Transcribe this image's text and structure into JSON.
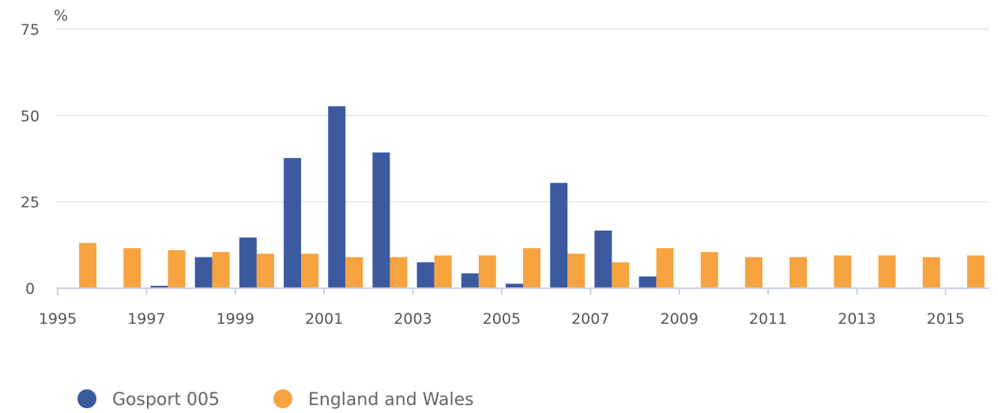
{
  "chart_data": {
    "type": "bar",
    "title": "",
    "xlabel": "",
    "ylabel": "%",
    "ylim": [
      0,
      75
    ],
    "yticks": [
      0,
      25,
      50,
      75
    ],
    "grid": true,
    "legend_placement": "bottom-left",
    "categories": [
      "1995",
      "1996",
      "1997",
      "1998",
      "1999",
      "2000",
      "2001",
      "2002",
      "2003",
      "2004",
      "2005",
      "2006",
      "2007",
      "2008",
      "2009",
      "2010",
      "2011",
      "2012",
      "2013",
      "2014",
      "2015"
    ],
    "xtick_labels": [
      "1995",
      "1997",
      "1999",
      "2001",
      "2003",
      "2005",
      "2007",
      "2009",
      "2011",
      "2013",
      "2015"
    ],
    "series": [
      {
        "name": "Gosport 005",
        "color": "#3c5aa0",
        "values": [
          0,
          0,
          0.7,
          9,
          14.7,
          37.7,
          52.7,
          39.3,
          7.5,
          4.3,
          1.3,
          30.5,
          16.7,
          3.4,
          0,
          0,
          0,
          0,
          0,
          0,
          0
        ]
      },
      {
        "name": "England and Wales",
        "color": "#f6a340",
        "values": [
          13.1,
          11.6,
          11,
          10.5,
          10,
          10,
          9,
          9,
          9.5,
          9.5,
          11.6,
          10,
          7.5,
          11.6,
          10.5,
          9,
          9,
          9.5,
          9.5,
          9,
          9.5
        ]
      }
    ]
  }
}
